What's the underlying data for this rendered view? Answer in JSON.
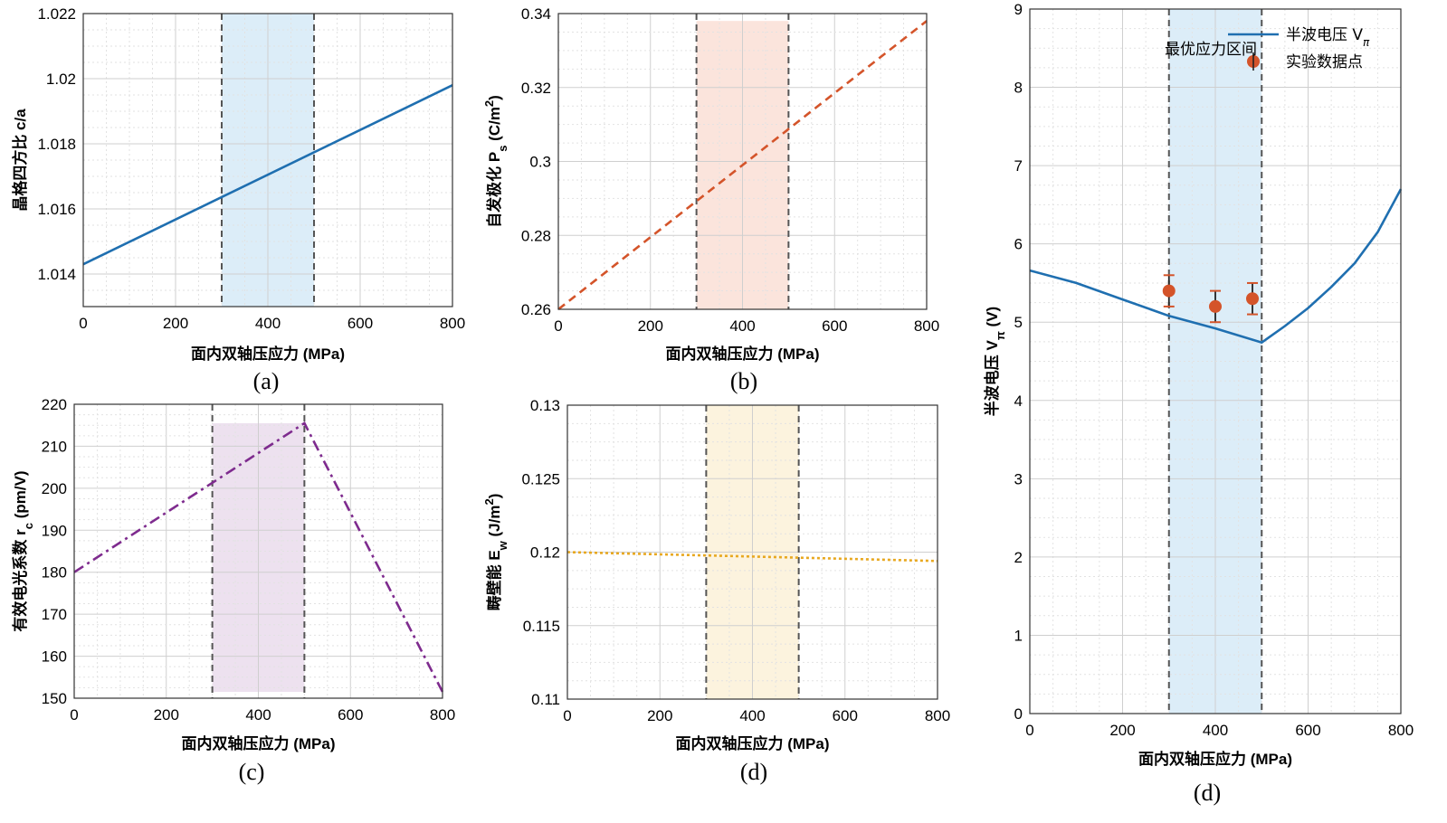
{
  "chart_data": [
    {
      "id": "a",
      "type": "line",
      "caption": "(a)",
      "xlabel": "面内双轴压应力 (MPa)",
      "ylabel": "晶格四方比 c/a",
      "xlim": [
        0,
        800
      ],
      "ylim": [
        1.013,
        1.022
      ],
      "xticks": [
        0,
        200,
        400,
        600,
        800
      ],
      "xtick_labels": [
        "0",
        "200",
        "400",
        "600",
        "800"
      ],
      "yticks": [
        1.014,
        1.016,
        1.018,
        1.02,
        1.022
      ],
      "ytick_labels": [
        "1.014",
        "1.016",
        "1.018",
        "1.02",
        "1.022"
      ],
      "grid": true,
      "shaded_region": {
        "x": [
          300,
          500
        ],
        "color": "#dcedf8"
      },
      "vlines": [
        300,
        500
      ],
      "series": [
        {
          "name": "c/a",
          "x": [
            0,
            800
          ],
          "y": [
            1.0143,
            1.0198
          ],
          "color": "#1f6fb0",
          "style": "solid"
        }
      ]
    },
    {
      "id": "b",
      "type": "line",
      "caption": "(b)",
      "xlabel": "面内双轴压应力 (MPa)",
      "ylabel": "自发极化 Ps (C/m2)",
      "ylabel_main": "自发极化 P",
      "ylabel_sub": "s",
      "ylabel_unit": " (C/m",
      "ylabel_sup": "2",
      "ylabel_close": ")",
      "xlim": [
        0,
        800
      ],
      "ylim": [
        0.26,
        0.34
      ],
      "xticks": [
        0,
        200,
        400,
        600,
        800
      ],
      "xtick_labels": [
        "0",
        "200",
        "400",
        "600",
        "800"
      ],
      "yticks": [
        0.26,
        0.28,
        0.3,
        0.32,
        0.34
      ],
      "ytick_labels": [
        "0.26",
        "0.28",
        "0.3",
        "0.32",
        "0.34"
      ],
      "grid": true,
      "shaded_region": {
        "x": [
          300,
          500
        ],
        "y": [
          0.26,
          0.338
        ],
        "color": "#fbe4dc"
      },
      "vlines": [
        300,
        500
      ],
      "series": [
        {
          "name": "Ps",
          "x": [
            0,
            800
          ],
          "y": [
            0.26,
            0.338
          ],
          "color": "#d4542a",
          "style": "dashed"
        }
      ]
    },
    {
      "id": "c",
      "type": "line",
      "caption": "(c)",
      "xlabel": "面内双轴压应力 (MPa)",
      "ylabel": "有效电光系数 rc (pm/V)",
      "ylabel_main": "有效电光系数 r",
      "ylabel_sub": "c",
      "ylabel_unit": " (pm/V)",
      "xlim": [
        0,
        800
      ],
      "ylim": [
        150,
        220
      ],
      "xticks": [
        0,
        200,
        400,
        600,
        800
      ],
      "xtick_labels": [
        "0",
        "200",
        "400",
        "600",
        "800"
      ],
      "yticks": [
        150,
        160,
        170,
        180,
        190,
        200,
        210,
        220
      ],
      "ytick_labels": [
        "150",
        "160",
        "170",
        "180",
        "190",
        "200",
        "210",
        "220"
      ],
      "grid": true,
      "shaded_region": {
        "x": [
          300,
          500
        ],
        "y": [
          151.5,
          215.5
        ],
        "color": "#ede1ef"
      },
      "vlines": [
        300,
        500
      ],
      "series": [
        {
          "name": "rc",
          "x": [
            0,
            500,
            800
          ],
          "y": [
            180,
            215.5,
            151.5
          ],
          "color": "#7e2b8e",
          "style": "dashdot"
        }
      ]
    },
    {
      "id": "d1",
      "type": "line",
      "caption": "(d)",
      "xlabel": "面内双轴压应力 (MPa)",
      "ylabel": "畴壁能 Ew (J/m2)",
      "ylabel_main": "畴壁能 E",
      "ylabel_sub": "w",
      "ylabel_unit": " (J/m",
      "ylabel_sup": "2",
      "ylabel_close": ")",
      "xlim": [
        0,
        800
      ],
      "ylim": [
        0.11,
        0.13
      ],
      "xticks": [
        0,
        200,
        400,
        600,
        800
      ],
      "xtick_labels": [
        "0",
        "200",
        "400",
        "600",
        "800"
      ],
      "yticks": [
        0.11,
        0.115,
        0.12,
        0.125,
        0.13
      ],
      "ytick_labels": [
        "0.11",
        "0.115",
        "0.12",
        "0.125",
        "0.13"
      ],
      "grid": true,
      "shaded_region": {
        "x": [
          300,
          500
        ],
        "color": "#fcf3de"
      },
      "vlines": [
        300,
        500
      ],
      "series": [
        {
          "name": "Ew",
          "x": [
            0,
            800
          ],
          "y": [
            0.12,
            0.1194
          ],
          "color": "#e8a820",
          "style": "dotted"
        }
      ]
    },
    {
      "id": "d2",
      "type": "line",
      "caption": "(d)",
      "xlabel": "面内双轴压应力 (MPa)",
      "ylabel": "半波电压 Vπ (V)",
      "ylabel_main": "半波电压 V",
      "ylabel_sub": "π",
      "ylabel_unit": " (V)",
      "xlim": [
        0,
        800
      ],
      "ylim": [
        0,
        9
      ],
      "xticks": [
        0,
        200,
        400,
        600,
        800
      ],
      "xtick_labels": [
        "0",
        "200",
        "400",
        "600",
        "800"
      ],
      "yticks": [
        0,
        1,
        2,
        3,
        4,
        5,
        6,
        7,
        8,
        9
      ],
      "ytick_labels": [
        "0",
        "1",
        "2",
        "3",
        "4",
        "5",
        "6",
        "7",
        "8",
        "9"
      ],
      "grid": true,
      "shaded_region": {
        "x": [
          300,
          500
        ],
        "color": "#dcedf8",
        "label": "最优应力区间"
      },
      "vlines": [
        300,
        500
      ],
      "series": [
        {
          "name": "半波电压 Vπ",
          "x": [
            0,
            100,
            200,
            300,
            400,
            500,
            550,
            600,
            650,
            700,
            750,
            800
          ],
          "y": [
            5.66,
            5.5,
            5.29,
            5.08,
            4.92,
            4.74,
            4.95,
            5.18,
            5.45,
            5.75,
            6.15,
            6.7
          ],
          "color": "#1f6fb0",
          "style": "solid"
        }
      ],
      "points": {
        "name": "实验数据点",
        "x": [
          300,
          400,
          480
        ],
        "y": [
          5.4,
          5.2,
          5.3
        ],
        "err": [
          0.2,
          0.2,
          0.2
        ],
        "color": "#d4542a"
      },
      "legend": {
        "position": "top-right",
        "items": [
          {
            "label_main": "半波电压 V",
            "label_sub": "π",
            "kind": "line",
            "color": "#1f6fb0"
          },
          {
            "label_main": "实验数据点",
            "kind": "marker",
            "color": "#d4542a"
          }
        ]
      }
    }
  ]
}
